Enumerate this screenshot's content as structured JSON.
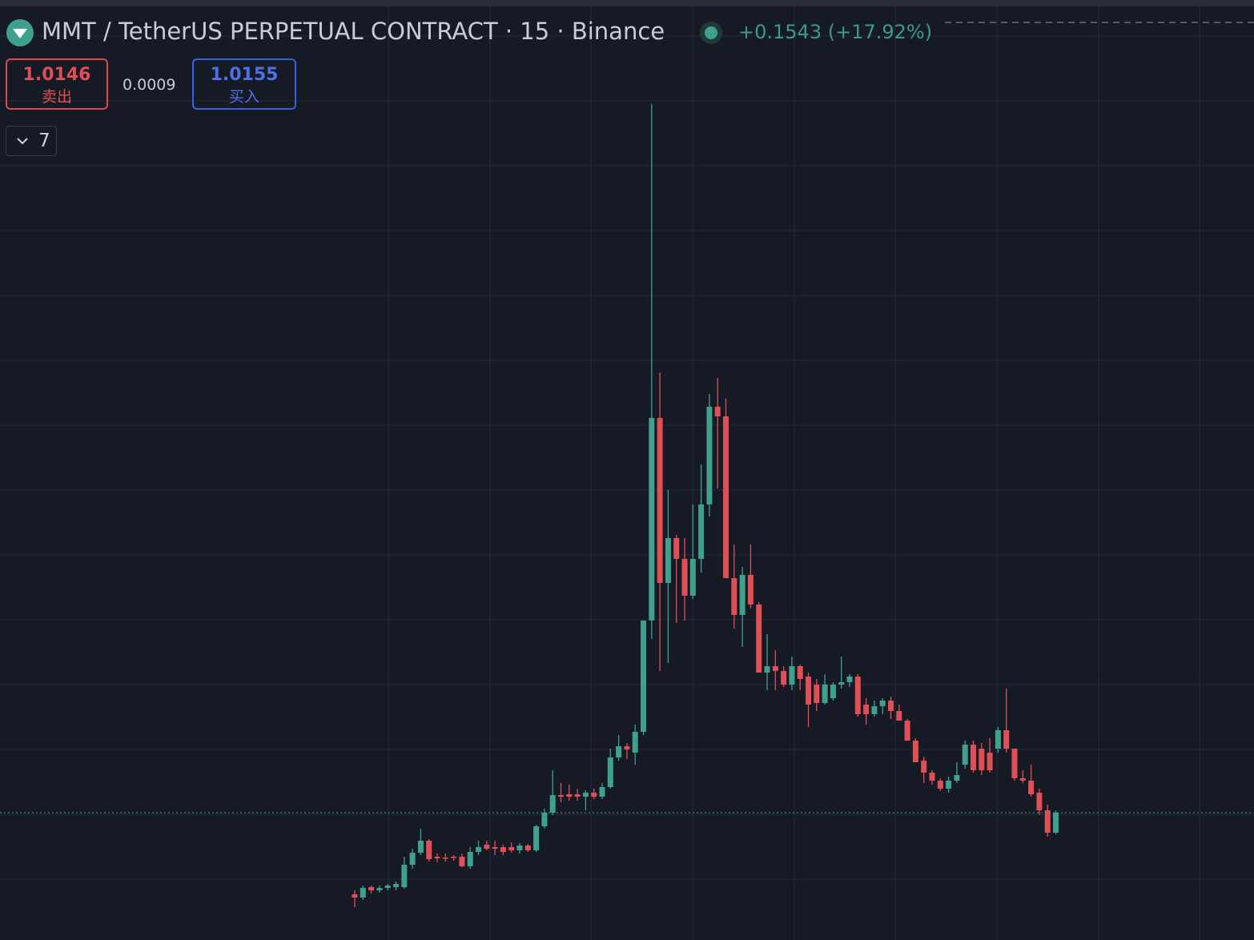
{
  "header": {
    "title": "MMT / TetherUS PERPETUAL CONTRACT · 15 · Binance",
    "change": "+0.1543 (+17.92%)"
  },
  "trade": {
    "sell_price": "1.0146",
    "sell_label": "卖出",
    "spread": "0.0009",
    "buy_price": "1.0155",
    "buy_label": "买入"
  },
  "indicators": {
    "count": "7"
  },
  "chart_data": {
    "type": "candlestick",
    "ylim": [
      0.7765,
      2.5375
    ],
    "up_color": "#3fa18c",
    "down_color": "#e04f55",
    "open": [
      0.862,
      0.856,
      0.8755,
      0.8695,
      0.874,
      0.8755,
      0.8755,
      0.9175,
      0.94,
      0.9625,
      0.9325,
      0.931,
      0.9325,
      0.9325,
      0.9145,
      0.9415,
      0.955,
      0.9505,
      0.9505,
      0.9505,
      0.9445,
      0.9535,
      0.9445,
      0.9895,
      1.015,
      1.048,
      1.0495,
      1.0495,
      1.045,
      1.0525,
      1.045,
      1.063,
      1.1185,
      1.1395,
      1.1275,
      1.1665,
      1.375,
      1.7545,
      1.4455,
      1.5295,
      1.4905,
      1.4215,
      1.4905,
      1.5925,
      1.7755,
      1.7575,
      1.4545,
      1.3855,
      1.4605,
      1.405,
      1.2775,
      1.2895,
      1.2805,
      1.255,
      1.2895,
      1.27,
      1.255,
      1.2205,
      1.2295,
      1.255,
      1.2595,
      1.27,
      1.2175,
      1.1995,
      1.2145,
      1.225,
      1.2055,
      1.1875,
      1.15,
      1.1125,
      1.09,
      1.075,
      1.06,
      1.075,
      1.105,
      1.1425,
      1.135,
      1.1275,
      1.135,
      1.1695,
      1.135,
      1.0795,
      1.075,
      1.0525,
      1.0195,
      0.9775
    ],
    "high": [
      0.8695,
      0.8785,
      0.8785,
      0.8785,
      0.8815,
      0.886,
      0.9325,
      0.9475,
      0.985,
      0.9655,
      0.9385,
      0.9385,
      0.9355,
      0.9385,
      0.9505,
      0.9625,
      0.9625,
      0.9625,
      0.955,
      0.9595,
      0.958,
      0.9565,
      0.9925,
      1.0225,
      1.0945,
      1.0705,
      1.0675,
      1.06,
      1.057,
      1.06,
      1.0705,
      1.135,
      1.1605,
      1.1455,
      1.18,
      1.375,
      2.3425,
      1.84,
      1.6195,
      1.5355,
      1.5295,
      1.5925,
      1.6675,
      1.7995,
      1.8295,
      1.7905,
      1.5175,
      1.4755,
      1.5175,
      1.4095,
      1.3495,
      1.3195,
      1.2895,
      1.3075,
      1.2925,
      1.2775,
      1.2655,
      1.2745,
      1.2595,
      1.3075,
      1.2745,
      1.2745,
      1.2295,
      1.225,
      1.2295,
      1.2325,
      1.2175,
      1.1905,
      1.1545,
      1.12,
      1.0945,
      1.0795,
      1.0825,
      1.1095,
      1.15,
      1.15,
      1.1455,
      1.1545,
      1.1755,
      1.2475,
      1.135,
      1.0945,
      1.105,
      1.06,
      1.03,
      1.0195
    ],
    "low": [
      0.838,
      0.8515,
      0.8635,
      0.865,
      0.8695,
      0.8695,
      0.8725,
      0.91,
      0.9355,
      0.9235,
      0.922,
      0.9235,
      0.925,
      0.913,
      0.91,
      0.9355,
      0.9445,
      0.9355,
      0.9355,
      0.94,
      0.9385,
      0.9415,
      0.9415,
      0.985,
      1.0105,
      1.0345,
      1.0375,
      1.0375,
      1.0195,
      1.0405,
      1.0405,
      1.06,
      1.1125,
      1.1155,
      1.105,
      1.1605,
      1.3405,
      1.2805,
      1.2955,
      1.3705,
      1.375,
      1.4155,
      1.465,
      1.57,
      1.6225,
      1.4545,
      1.36,
      1.3255,
      1.3975,
      1.2775,
      1.2445,
      1.2445,
      1.2505,
      1.2445,
      1.2445,
      1.1755,
      1.2055,
      1.2175,
      1.225,
      1.2475,
      1.2505,
      1.195,
      1.18,
      1.195,
      1.1995,
      1.1905,
      1.1875,
      1.15,
      1.1095,
      1.0705,
      1.0675,
      1.0555,
      1.0525,
      1.0705,
      1.0975,
      1.09,
      1.0855,
      1.09,
      1.1275,
      1.1275,
      1.075,
      1.0705,
      1.045,
      1.0105,
      0.97,
      0.9745
    ],
    "close": [
      0.856,
      0.874,
      0.8695,
      0.874,
      0.8785,
      0.8815,
      0.9175,
      0.94,
      0.9625,
      0.928,
      0.9295,
      0.9295,
      0.931,
      0.9145,
      0.9415,
      0.9505,
      0.9475,
      0.9475,
      0.9415,
      0.9445,
      0.9535,
      0.9445,
      0.9895,
      1.015,
      1.048,
      1.045,
      1.045,
      1.045,
      1.0525,
      1.045,
      1.063,
      1.1185,
      1.1395,
      1.1335,
      1.1665,
      1.375,
      1.7545,
      1.4455,
      1.5295,
      1.4905,
      1.4215,
      1.4905,
      1.5925,
      1.7755,
      1.7575,
      1.4545,
      1.3855,
      1.4605,
      1.405,
      1.2775,
      1.2895,
      1.2805,
      1.255,
      1.2895,
      1.2655,
      1.2175,
      1.2205,
      1.255,
      1.255,
      1.2595,
      1.27,
      1.1995,
      1.1995,
      1.2145,
      1.225,
      1.2055,
      1.1875,
      1.15,
      1.1095,
      1.09,
      1.075,
      1.06,
      1.075,
      1.0855,
      1.1425,
      1.0945,
      1.0945,
      1.0945,
      1.1695,
      1.135,
      1.0795,
      1.075,
      1.0495,
      1.0195,
      0.9775,
      1.015
    ]
  }
}
